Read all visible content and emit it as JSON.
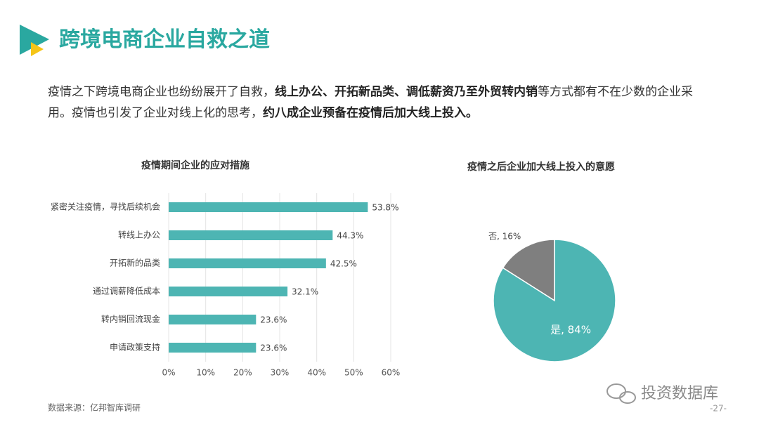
{
  "header": {
    "title": "跨境电商企业自救之道"
  },
  "intro": {
    "segments": [
      {
        "text": "疫情之下跨境电商企业也纷纷展开了自救，",
        "bold": false
      },
      {
        "text": "线上办公、开拓新品类、调低薪资乃至外贸转内销",
        "bold": true
      },
      {
        "text": "等方式都有不在少数的企业采用。疫情也引发了企业对线上化的思考，",
        "bold": false
      },
      {
        "text": "约八成企业预备在疫情后加大线上投入。",
        "bold": true
      }
    ]
  },
  "chart_data": [
    {
      "type": "hbar",
      "title": "疫情期间企业的应对措施",
      "categories": [
        "紧密关注疫情，寻找后续机会",
        "转线上办公",
        "开拓新的品类",
        "通过调薪降低成本",
        "转内销回流现金",
        "申请政策支持"
      ],
      "values": [
        53.8,
        44.3,
        42.5,
        32.1,
        23.6,
        23.6
      ],
      "value_labels": [
        "53.8%",
        "44.3%",
        "42.5%",
        "32.1%",
        "23.6%",
        "23.6%"
      ],
      "color": "#4db5b3",
      "xlim": [
        0,
        60
      ],
      "xticks": [
        {
          "value": 0,
          "label": "0%"
        },
        {
          "value": 10,
          "label": "10%"
        },
        {
          "value": 20,
          "label": "20%"
        },
        {
          "value": 30,
          "label": "30%"
        },
        {
          "value": 40,
          "label": "40%"
        },
        {
          "value": 50,
          "label": "50%"
        },
        {
          "value": 60,
          "label": "60%"
        }
      ],
      "grid": true
    },
    {
      "type": "pie",
      "title": "疫情之后企业加大线上投入的意愿",
      "values": [
        16,
        84
      ],
      "value_labels": [
        "否, 16%",
        "是, 84%"
      ],
      "colors": [
        "#7f7f7f",
        "#4db5b3"
      ]
    }
  ],
  "footer": {
    "source": "数据来源：亿邦智库调研",
    "watermark": "投资数据库",
    "page": "-27-"
  }
}
